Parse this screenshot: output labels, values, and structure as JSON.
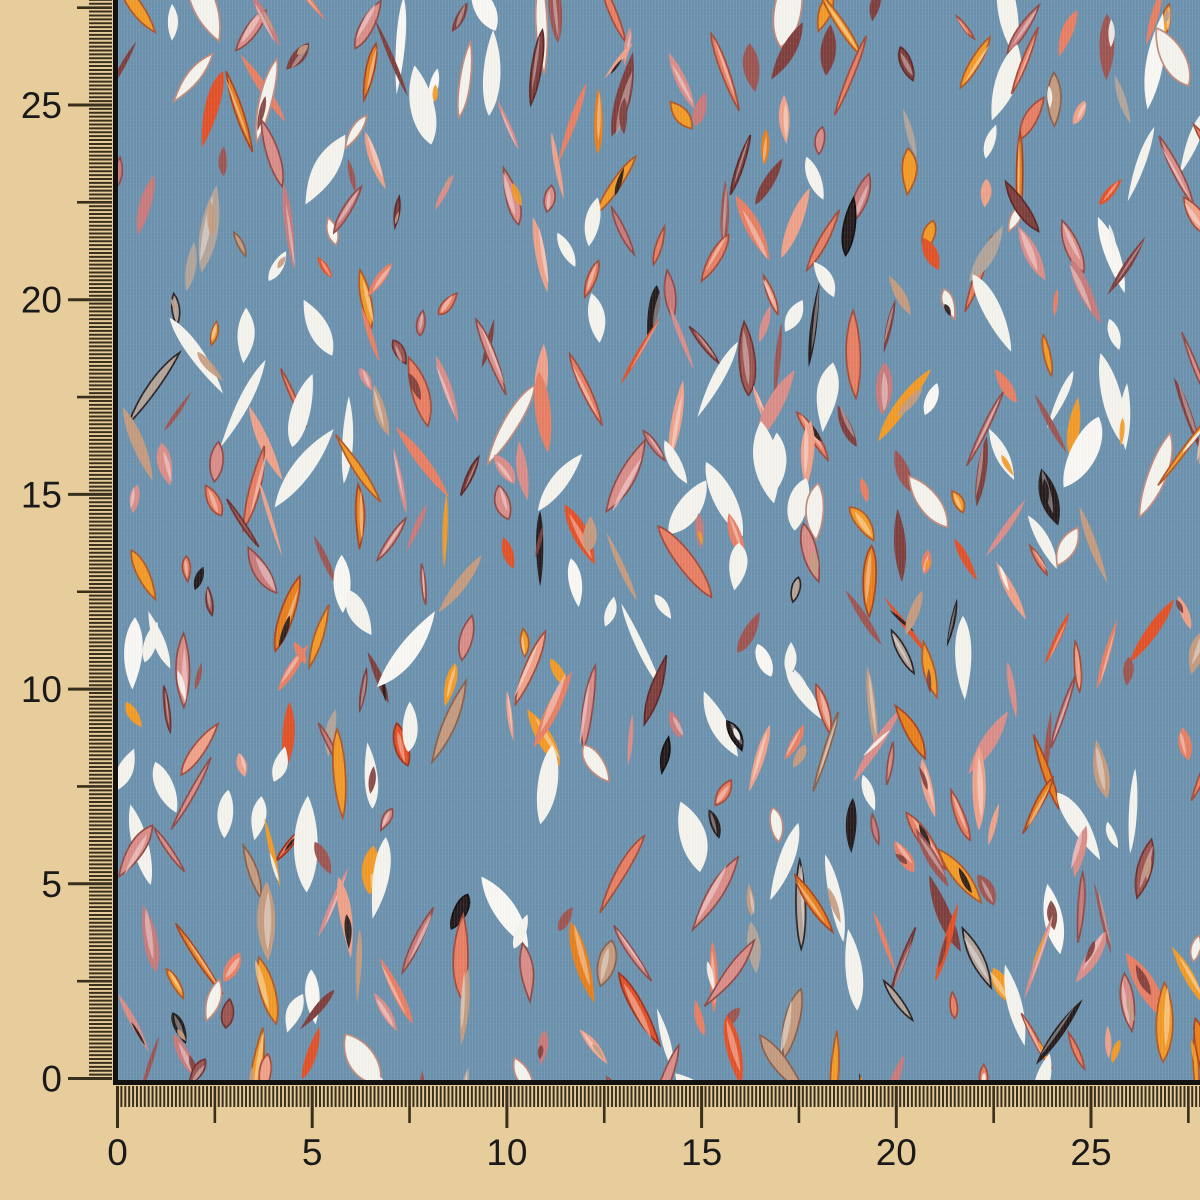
{
  "page": {
    "background": "#e8cd9c"
  },
  "rulers": {
    "unit": "cm",
    "left": {
      "labels": [
        25,
        20,
        15,
        10,
        5,
        0
      ]
    },
    "bottom": {
      "labels": [
        0,
        5,
        10,
        15,
        20,
        25
      ]
    },
    "tick_color": "#38301d",
    "label_color": "#1a1a1a"
  },
  "fabric": {
    "base_color": "#6d92ae",
    "edge_color": "#141211",
    "print_colors": [
      {
        "name": "white",
        "hex": "#f5f3ed",
        "weight": 21,
        "outline": "#c08a7c",
        "outline_prob": 0.25
      },
      {
        "name": "cream",
        "hex": "#faf8f3",
        "weight": 4,
        "outline": "#c08a7c",
        "outline_prob": 0.15
      },
      {
        "name": "coral",
        "hex": "#e87f63",
        "weight": 13,
        "outline": "#a34a38",
        "outline_prob": 0.5
      },
      {
        "name": "salmon",
        "hex": "#efa189",
        "weight": 6,
        "outline": "#a34a38",
        "outline_prob": 0.4
      },
      {
        "name": "pink",
        "hex": "#da8d88",
        "weight": 10,
        "outline": "#8f4a45",
        "outline_prob": 0.5
      },
      {
        "name": "rose",
        "hex": "#c87a7a",
        "weight": 6,
        "outline": "#8f4a45",
        "outline_prob": 0.5
      },
      {
        "name": "mauve",
        "hex": "#9d5551",
        "weight": 8,
        "outline": "#6e302e",
        "outline_prob": 0.4
      },
      {
        "name": "maroon",
        "hex": "#7f3f3c",
        "weight": 4,
        "outline": "#5c2725",
        "outline_prob": 0.3
      },
      {
        "name": "orange",
        "hex": "#f29a26",
        "weight": 9,
        "outline": "#b05626",
        "outline_prob": 0.6
      },
      {
        "name": "deep-orange",
        "hex": "#e87f1c",
        "weight": 3,
        "outline": "#a8431f",
        "outline_prob": 0.6
      },
      {
        "name": "red-orange",
        "hex": "#e25127",
        "weight": 5,
        "outline": "#9c2f1c",
        "outline_prob": 0.4
      },
      {
        "name": "tan",
        "hex": "#c49b7f",
        "weight": 4,
        "outline": "#8a5f49",
        "outline_prob": 0.4
      },
      {
        "name": "grey-tan",
        "hex": "#b2a49a",
        "weight": 3,
        "outline": "#2a2122",
        "outline_prob": 0.55
      },
      {
        "name": "black",
        "hex": "#261c1d",
        "weight": 4,
        "outline": "#120d0e",
        "outline_prob": 0.2
      }
    ],
    "accent_patch_colors": [
      "#241a1a",
      "#c49b7f",
      "#f29a26",
      "#7f3f3c",
      "#f5f3ed"
    ]
  }
}
